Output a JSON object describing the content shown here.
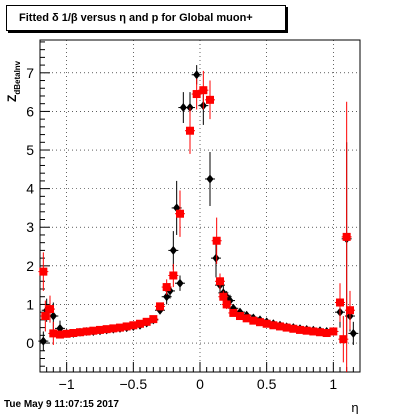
{
  "title": "Fitted δ 1/β versus η and p for Global muon+",
  "footer_date": "Tue May  9 11:07:15 2017",
  "chart_data": {
    "type": "scatter",
    "title": "Fitted δ 1/β versus η and p for Global muon+",
    "xlabel": "η",
    "ylabel": "Z",
    "ylabel_subscript": "dBetaInv",
    "xlim": [
      -1.2,
      1.2
    ],
    "ylim": [
      -0.75,
      7.85
    ],
    "xticks": [
      -1,
      -0.5,
      0,
      0.5,
      1
    ],
    "xtick_labels": [
      "−1",
      "−0.5",
      "0",
      "0.5",
      "1"
    ],
    "yticks": [
      0,
      1,
      2,
      3,
      4,
      5,
      6,
      7
    ],
    "grid": true,
    "colors": {
      "black_series": "#000000",
      "red_series": "#ff0000"
    },
    "series": [
      {
        "marker": "diamond",
        "color": "#000000",
        "points": [
          {
            "x": -1.175,
            "y": 0.05,
            "err": 0.25
          },
          {
            "x": -1.15,
            "y": 0.85,
            "err": 0.3
          },
          {
            "x": -1.1,
            "y": 0.7,
            "err": 0.35
          },
          {
            "x": -1.05,
            "y": 0.38,
            "err": 0.2
          },
          {
            "x": -1.0,
            "y": 0.25,
            "err": 0.1
          },
          {
            "x": -0.95,
            "y": 0.25,
            "err": 0.08
          },
          {
            "x": -0.9,
            "y": 0.28,
            "err": 0.05
          },
          {
            "x": -0.85,
            "y": 0.3,
            "err": 0.05
          },
          {
            "x": -0.8,
            "y": 0.3,
            "err": 0.05
          },
          {
            "x": -0.75,
            "y": 0.32,
            "err": 0.05
          },
          {
            "x": -0.7,
            "y": 0.34,
            "err": 0.05
          },
          {
            "x": -0.65,
            "y": 0.36,
            "err": 0.05
          },
          {
            "x": -0.6,
            "y": 0.38,
            "err": 0.05
          },
          {
            "x": -0.55,
            "y": 0.4,
            "err": 0.05
          },
          {
            "x": -0.5,
            "y": 0.43,
            "err": 0.05
          },
          {
            "x": -0.45,
            "y": 0.46,
            "err": 0.06
          },
          {
            "x": -0.4,
            "y": 0.52,
            "err": 0.06
          },
          {
            "x": -0.35,
            "y": 0.6,
            "err": 0.08
          },
          {
            "x": -0.3,
            "y": 0.85,
            "err": 0.1
          },
          {
            "x": -0.25,
            "y": 1.2,
            "err": 0.2
          },
          {
            "x": -0.225,
            "y": 1.35,
            "err": 0.2
          },
          {
            "x": -0.2,
            "y": 2.4,
            "err": 0.5
          },
          {
            "x": -0.175,
            "y": 3.5,
            "err": 0.7
          },
          {
            "x": -0.15,
            "y": 1.55,
            "err": 0.2
          },
          {
            "x": -0.125,
            "y": 6.1,
            "err": 0.4
          },
          {
            "x": -0.075,
            "y": 6.1,
            "err": 0.4
          },
          {
            "x": -0.025,
            "y": 6.95,
            "err": 0.25
          },
          {
            "x": 0.025,
            "y": 6.15,
            "err": 0.5
          },
          {
            "x": 0.075,
            "y": 4.25,
            "err": 0.7
          },
          {
            "x": 0.12,
            "y": 2.2,
            "err": 0.5
          },
          {
            "x": 0.15,
            "y": 1.5,
            "err": 0.2
          },
          {
            "x": 0.175,
            "y": 1.3,
            "err": 0.2
          },
          {
            "x": 0.2,
            "y": 1.2,
            "err": 0.15
          },
          {
            "x": 0.225,
            "y": 1.1,
            "err": 0.15
          },
          {
            "x": 0.25,
            "y": 0.9,
            "err": 0.1
          },
          {
            "x": 0.3,
            "y": 0.8,
            "err": 0.08
          },
          {
            "x": 0.35,
            "y": 0.72,
            "err": 0.06
          },
          {
            "x": 0.4,
            "y": 0.65,
            "err": 0.05
          },
          {
            "x": 0.45,
            "y": 0.6,
            "err": 0.05
          },
          {
            "x": 0.5,
            "y": 0.55,
            "err": 0.05
          },
          {
            "x": 0.55,
            "y": 0.5,
            "err": 0.05
          },
          {
            "x": 0.6,
            "y": 0.46,
            "err": 0.05
          },
          {
            "x": 0.65,
            "y": 0.42,
            "err": 0.05
          },
          {
            "x": 0.7,
            "y": 0.4,
            "err": 0.05
          },
          {
            "x": 0.75,
            "y": 0.37,
            "err": 0.05
          },
          {
            "x": 0.8,
            "y": 0.35,
            "err": 0.05
          },
          {
            "x": 0.85,
            "y": 0.33,
            "err": 0.05
          },
          {
            "x": 0.9,
            "y": 0.32,
            "err": 0.05
          },
          {
            "x": 0.95,
            "y": 0.3,
            "err": 0.06
          },
          {
            "x": 1.0,
            "y": 0.3,
            "err": 0.08
          },
          {
            "x": 1.05,
            "y": 0.8,
            "err": 0.4
          },
          {
            "x": 1.1,
            "y": 2.7,
            "err": 2.5
          },
          {
            "x": 1.125,
            "y": 0.7,
            "err": 0.4
          },
          {
            "x": 1.15,
            "y": 0.25,
            "err": 0.3
          }
        ]
      },
      {
        "marker": "square",
        "color": "#ff0000",
        "points": [
          {
            "x": -1.175,
            "y": 1.85,
            "err": 0.5
          },
          {
            "x": -1.16,
            "y": 0.7,
            "err": 0.4
          },
          {
            "x": -1.125,
            "y": 0.88,
            "err": 0.35
          },
          {
            "x": -1.1,
            "y": 0.25,
            "err": 0.3
          },
          {
            "x": -1.05,
            "y": 0.22,
            "err": 0.1
          },
          {
            "x": -1.0,
            "y": 0.24,
            "err": 0.08
          },
          {
            "x": -0.95,
            "y": 0.26,
            "err": 0.06
          },
          {
            "x": -0.9,
            "y": 0.28,
            "err": 0.05
          },
          {
            "x": -0.85,
            "y": 0.3,
            "err": 0.05
          },
          {
            "x": -0.8,
            "y": 0.32,
            "err": 0.05
          },
          {
            "x": -0.75,
            "y": 0.34,
            "err": 0.05
          },
          {
            "x": -0.7,
            "y": 0.36,
            "err": 0.05
          },
          {
            "x": -0.65,
            "y": 0.38,
            "err": 0.05
          },
          {
            "x": -0.6,
            "y": 0.4,
            "err": 0.05
          },
          {
            "x": -0.55,
            "y": 0.43,
            "err": 0.05
          },
          {
            "x": -0.5,
            "y": 0.46,
            "err": 0.05
          },
          {
            "x": -0.45,
            "y": 0.5,
            "err": 0.06
          },
          {
            "x": -0.4,
            "y": 0.55,
            "err": 0.06
          },
          {
            "x": -0.35,
            "y": 0.62,
            "err": 0.07
          },
          {
            "x": -0.3,
            "y": 0.95,
            "err": 0.1
          },
          {
            "x": -0.25,
            "y": 1.45,
            "err": 0.2
          },
          {
            "x": -0.2,
            "y": 1.75,
            "err": 0.3
          },
          {
            "x": -0.15,
            "y": 3.35,
            "err": 0.6
          },
          {
            "x": -0.075,
            "y": 5.5,
            "err": 0.6
          },
          {
            "x": -0.025,
            "y": 6.45,
            "err": 0.4
          },
          {
            "x": 0.025,
            "y": 6.55,
            "err": 0.5
          },
          {
            "x": 0.075,
            "y": 6.3,
            "err": 0.5
          },
          {
            "x": 0.125,
            "y": 2.65,
            "err": 0.6
          },
          {
            "x": 0.15,
            "y": 1.6,
            "err": 0.2
          },
          {
            "x": 0.175,
            "y": 1.2,
            "err": 0.15
          },
          {
            "x": 0.2,
            "y": 1.0,
            "err": 0.12
          },
          {
            "x": 0.25,
            "y": 0.78,
            "err": 0.08
          },
          {
            "x": 0.3,
            "y": 0.7,
            "err": 0.07
          },
          {
            "x": 0.35,
            "y": 0.64,
            "err": 0.06
          },
          {
            "x": 0.4,
            "y": 0.58,
            "err": 0.05
          },
          {
            "x": 0.45,
            "y": 0.54,
            "err": 0.05
          },
          {
            "x": 0.5,
            "y": 0.5,
            "err": 0.05
          },
          {
            "x": 0.55,
            "y": 0.46,
            "err": 0.05
          },
          {
            "x": 0.6,
            "y": 0.43,
            "err": 0.05
          },
          {
            "x": 0.65,
            "y": 0.4,
            "err": 0.05
          },
          {
            "x": 0.7,
            "y": 0.37,
            "err": 0.05
          },
          {
            "x": 0.75,
            "y": 0.34,
            "err": 0.05
          },
          {
            "x": 0.8,
            "y": 0.32,
            "err": 0.05
          },
          {
            "x": 0.85,
            "y": 0.3,
            "err": 0.05
          },
          {
            "x": 0.9,
            "y": 0.28,
            "err": 0.05
          },
          {
            "x": 0.95,
            "y": 0.26,
            "err": 0.06
          },
          {
            "x": 1.0,
            "y": 0.3,
            "err": 0.1
          },
          {
            "x": 1.05,
            "y": 1.05,
            "err": 0.5
          },
          {
            "x": 1.075,
            "y": 0.1,
            "err": 0.6
          },
          {
            "x": 1.1,
            "y": 2.75,
            "err": 3.5
          },
          {
            "x": 1.125,
            "y": 0.85,
            "err": 0.5
          }
        ]
      }
    ]
  }
}
